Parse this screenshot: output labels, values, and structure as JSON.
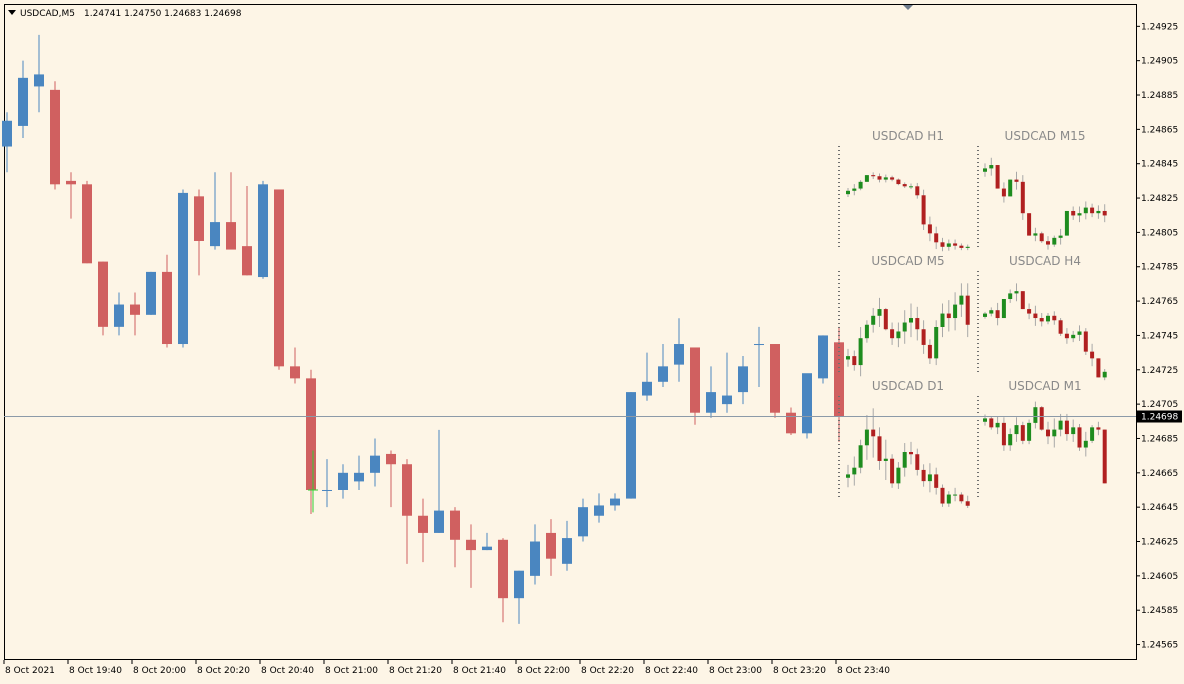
{
  "header": {
    "symbol_timeframe": "USDCAD,M5",
    "ohlc": "1.24741 1.24750 1.24683 1.24698"
  },
  "colors": {
    "background": "#fdf5e6",
    "bull": "#4a86c0",
    "bear": "#d06060",
    "bid_line": "#8c9aa8",
    "mini_bull": "#1e8c1e",
    "mini_bear": "#b02020",
    "mini_wick": "#a8a8a8",
    "forming_cross": "#33cc33",
    "price_tag": "#000000"
  },
  "chart_data": {
    "type": "candlestick",
    "y_axis": {
      "range": [
        1.24556,
        1.24938
      ],
      "ticks": [
        "1.24925",
        "1.24905",
        "1.24885",
        "1.24865",
        "1.24845",
        "1.24825",
        "1.24805",
        "1.24785",
        "1.24765",
        "1.24745",
        "1.24725",
        "1.24705",
        "1.24685",
        "1.24665",
        "1.24645",
        "1.24625",
        "1.24605",
        "1.24585",
        "1.24565"
      ]
    },
    "x_axis": {
      "ticks": [
        {
          "label": "8 Oct 2021",
          "index": 0
        },
        {
          "label": "8 Oct 19:40",
          "index": 4
        },
        {
          "label": "8 Oct 20:00",
          "index": 8
        },
        {
          "label": "8 Oct 20:20",
          "index": 12
        },
        {
          "label": "8 Oct 20:40",
          "index": 16
        },
        {
          "label": "8 Oct 21:00",
          "index": 20
        },
        {
          "label": "8 Oct 21:20",
          "index": 24
        },
        {
          "label": "8 Oct 21:40",
          "index": 28
        },
        {
          "label": "8 Oct 22:00",
          "index": 32
        },
        {
          "label": "8 Oct 22:20",
          "index": 36
        },
        {
          "label": "8 Oct 22:40",
          "index": 40
        },
        {
          "label": "8 Oct 23:00",
          "index": 44
        },
        {
          "label": "8 Oct 23:20",
          "index": 48
        },
        {
          "label": "8 Oct 23:40",
          "index": 52
        }
      ]
    },
    "bid_price": "1.24698",
    "candles": [
      {
        "o": 1.24855,
        "h": 1.24875,
        "l": 1.2484,
        "c": 1.2487
      },
      {
        "o": 1.24867,
        "h": 1.24905,
        "l": 1.2486,
        "c": 1.24895
      },
      {
        "o": 1.2489,
        "h": 1.2492,
        "l": 1.24875,
        "c": 1.24897
      },
      {
        "o": 1.24888,
        "h": 1.24893,
        "l": 1.2483,
        "c": 1.24833
      },
      {
        "o": 1.24835,
        "h": 1.2484,
        "l": 1.24813,
        "c": 1.24833
      },
      {
        "o": 1.24833,
        "h": 1.24835,
        "l": 1.24787,
        "c": 1.24787
      },
      {
        "o": 1.24788,
        "h": 1.24788,
        "l": 1.24745,
        "c": 1.2475
      },
      {
        "o": 1.2475,
        "h": 1.2477,
        "l": 1.24745,
        "c": 1.24763
      },
      {
        "o": 1.24763,
        "h": 1.2477,
        "l": 1.24745,
        "c": 1.24757
      },
      {
        "o": 1.24757,
        "h": 1.24782,
        "l": 1.24757,
        "c": 1.24782
      },
      {
        "o": 1.24782,
        "h": 1.24792,
        "l": 1.24738,
        "c": 1.2474
      },
      {
        "o": 1.2474,
        "h": 1.2483,
        "l": 1.24738,
        "c": 1.24828
      },
      {
        "o": 1.24826,
        "h": 1.2483,
        "l": 1.2478,
        "c": 1.248
      },
      {
        "o": 1.24797,
        "h": 1.2484,
        "l": 1.24795,
        "c": 1.24811
      },
      {
        "o": 1.24811,
        "h": 1.2484,
        "l": 1.24797,
        "c": 1.24795
      },
      {
        "o": 1.24797,
        "h": 1.24832,
        "l": 1.2478,
        "c": 1.2478
      },
      {
        "o": 1.24779,
        "h": 1.24835,
        "l": 1.24778,
        "c": 1.24833
      },
      {
        "o": 1.2483,
        "h": 1.2483,
        "l": 1.24725,
        "c": 1.24727
      },
      {
        "o": 1.24727,
        "h": 1.24738,
        "l": 1.24717,
        "c": 1.2472
      },
      {
        "o": 1.2472,
        "h": 1.24725,
        "l": 1.24641,
        "c": 1.24655
      },
      {
        "o": 1.24655,
        "h": 1.24673,
        "l": 1.24645,
        "c": 1.24655
      },
      {
        "o": 1.24655,
        "h": 1.2467,
        "l": 1.2465,
        "c": 1.24665
      },
      {
        "o": 1.2466,
        "h": 1.24675,
        "l": 1.24655,
        "c": 1.24665
      },
      {
        "o": 1.24665,
        "h": 1.24685,
        "l": 1.24657,
        "c": 1.24675
      },
      {
        "o": 1.24676,
        "h": 1.24678,
        "l": 1.24645,
        "c": 1.2467
      },
      {
        "o": 1.2467,
        "h": 1.24673,
        "l": 1.24612,
        "c": 1.2464
      },
      {
        "o": 1.2464,
        "h": 1.2465,
        "l": 1.24613,
        "c": 1.2463
      },
      {
        "o": 1.2463,
        "h": 1.2469,
        "l": 1.2463,
        "c": 1.24643
      },
      {
        "o": 1.24643,
        "h": 1.24645,
        "l": 1.2461,
        "c": 1.24626
      },
      {
        "o": 1.24626,
        "h": 1.24635,
        "l": 1.24598,
        "c": 1.2462
      },
      {
        "o": 1.2462,
        "h": 1.2463,
        "l": 1.2462,
        "c": 1.24622
      },
      {
        "o": 1.24626,
        "h": 1.24627,
        "l": 1.24578,
        "c": 1.24592
      },
      {
        "o": 1.24592,
        "h": 1.24608,
        "l": 1.24577,
        "c": 1.24608
      },
      {
        "o": 1.24605,
        "h": 1.24635,
        "l": 1.246,
        "c": 1.24625
      },
      {
        "o": 1.2463,
        "h": 1.24638,
        "l": 1.24605,
        "c": 1.24615
      },
      {
        "o": 1.24612,
        "h": 1.24637,
        "l": 1.24608,
        "c": 1.24627
      },
      {
        "o": 1.24628,
        "h": 1.2465,
        "l": 1.24625,
        "c": 1.24645
      },
      {
        "o": 1.2464,
        "h": 1.24653,
        "l": 1.24636,
        "c": 1.24646
      },
      {
        "o": 1.24646,
        "h": 1.24653,
        "l": 1.24643,
        "c": 1.2465
      },
      {
        "o": 1.2465,
        "h": 1.24712,
        "l": 1.2465,
        "c": 1.24712
      },
      {
        "o": 1.2471,
        "h": 1.24735,
        "l": 1.24707,
        "c": 1.24718
      },
      {
        "o": 1.24718,
        "h": 1.2474,
        "l": 1.24715,
        "c": 1.24727
      },
      {
        "o": 1.24728,
        "h": 1.24755,
        "l": 1.24718,
        "c": 1.2474
      },
      {
        "o": 1.24738,
        "h": 1.24738,
        "l": 1.24693,
        "c": 1.247
      },
      {
        "o": 1.247,
        "h": 1.24727,
        "l": 1.24697,
        "c": 1.24712
      },
      {
        "o": 1.24705,
        "h": 1.24735,
        "l": 1.247,
        "c": 1.2471
      },
      {
        "o": 1.24712,
        "h": 1.24733,
        "l": 1.24705,
        "c": 1.24727
      },
      {
        "o": 1.2474,
        "h": 1.2475,
        "l": 1.24715,
        "c": 1.2474
      },
      {
        "o": 1.2474,
        "h": 1.2474,
        "l": 1.24697,
        "c": 1.247
      },
      {
        "o": 1.247,
        "h": 1.24703,
        "l": 1.24687,
        "c": 1.24688
      },
      {
        "o": 1.24688,
        "h": 1.2472,
        "l": 1.24685,
        "c": 1.24723
      },
      {
        "o": 1.2472,
        "h": 1.24745,
        "l": 1.24717,
        "c": 1.24745
      },
      {
        "o": 1.24741,
        "h": 1.2475,
        "l": 1.24683,
        "c": 1.24698
      }
    ],
    "forming_candle": {
      "index": 19,
      "o": 1.24655,
      "h": 1.24678,
      "l": 1.24642,
      "c": 1.24655
    }
  },
  "mini_charts": [
    {
      "title": "USDCAD H1",
      "closes": [
        0.6,
        0.62,
        0.68,
        0.74,
        0.73,
        0.7,
        0.72,
        0.7,
        0.66,
        0.64,
        0.64,
        0.56,
        0.3,
        0.22,
        0.14,
        0.1,
        0.13,
        0.11,
        0.09,
        0.1
      ],
      "ranges": [
        0.08,
        0.1,
        0.09,
        0.06,
        0.06,
        0.08,
        0.07,
        0.05,
        0.06,
        0.05,
        0.05,
        0.14,
        0.36,
        0.22,
        0.2,
        0.12,
        0.1,
        0.09,
        0.06,
        0.05
      ]
    },
    {
      "title": "USDCAD M15",
      "closes": [
        0.8,
        0.83,
        0.62,
        0.55,
        0.7,
        0.68,
        0.4,
        0.2,
        0.22,
        0.15,
        0.12,
        0.18,
        0.2,
        0.42,
        0.38,
        0.4,
        0.45,
        0.4,
        0.42,
        0.38
      ],
      "ranges": [
        0.12,
        0.16,
        0.12,
        0.18,
        0.14,
        0.16,
        0.4,
        0.14,
        0.12,
        0.1,
        0.12,
        0.1,
        0.14,
        0.22,
        0.12,
        0.14,
        0.16,
        0.12,
        0.12,
        0.16
      ]
    },
    {
      "title": "USDCAD M5",
      "closes": [
        0.24,
        0.16,
        0.4,
        0.52,
        0.6,
        0.66,
        0.48,
        0.4,
        0.46,
        0.54,
        0.58,
        0.48,
        0.34,
        0.22,
        0.5,
        0.62,
        0.58,
        0.7,
        0.78,
        0.52
      ],
      "ranges": [
        0.16,
        0.18,
        0.44,
        0.2,
        0.22,
        0.26,
        0.2,
        0.2,
        0.22,
        0.3,
        0.3,
        0.3,
        0.3,
        0.22,
        0.4,
        0.3,
        0.28,
        0.34,
        0.3,
        0.48
      ]
    },
    {
      "title": "USDCAD H4",
      "closes": [
        0.62,
        0.65,
        0.58,
        0.75,
        0.8,
        0.82,
        0.66,
        0.62,
        0.58,
        0.55,
        0.6,
        0.56,
        0.44,
        0.4,
        0.43,
        0.46,
        0.28,
        0.22,
        0.05,
        0.1
      ],
      "ranges": [
        0.06,
        0.08,
        0.2,
        0.14,
        0.12,
        0.16,
        0.16,
        0.14,
        0.18,
        0.12,
        0.1,
        0.12,
        0.16,
        0.14,
        0.1,
        0.14,
        0.24,
        0.2,
        0.12,
        0.1
      ]
    },
    {
      "title": "USDCAD D1",
      "closes": [
        0.3,
        0.36,
        0.56,
        0.7,
        0.64,
        0.42,
        0.44,
        0.22,
        0.36,
        0.5,
        0.48,
        0.34,
        0.24,
        0.3,
        0.18,
        0.04,
        0.12,
        0.12,
        0.06,
        0.02
      ],
      "ranges": [
        0.2,
        0.26,
        0.3,
        0.4,
        0.44,
        0.38,
        0.36,
        0.3,
        0.24,
        0.3,
        0.2,
        0.24,
        0.2,
        0.26,
        0.24,
        0.2,
        0.14,
        0.12,
        0.1,
        0.14
      ]
    },
    {
      "title": "USDCAD M1",
      "closes": [
        0.8,
        0.72,
        0.76,
        0.56,
        0.66,
        0.74,
        0.6,
        0.76,
        0.9,
        0.7,
        0.64,
        0.7,
        0.78,
        0.66,
        0.72,
        0.54,
        0.6,
        0.72,
        0.7,
        0.22
      ],
      "ranges": [
        0.1,
        0.12,
        0.16,
        0.3,
        0.2,
        0.22,
        0.2,
        0.22,
        0.24,
        0.22,
        0.2,
        0.26,
        0.2,
        0.24,
        0.2,
        0.24,
        0.22,
        0.16,
        0.12,
        0.48
      ]
    }
  ]
}
